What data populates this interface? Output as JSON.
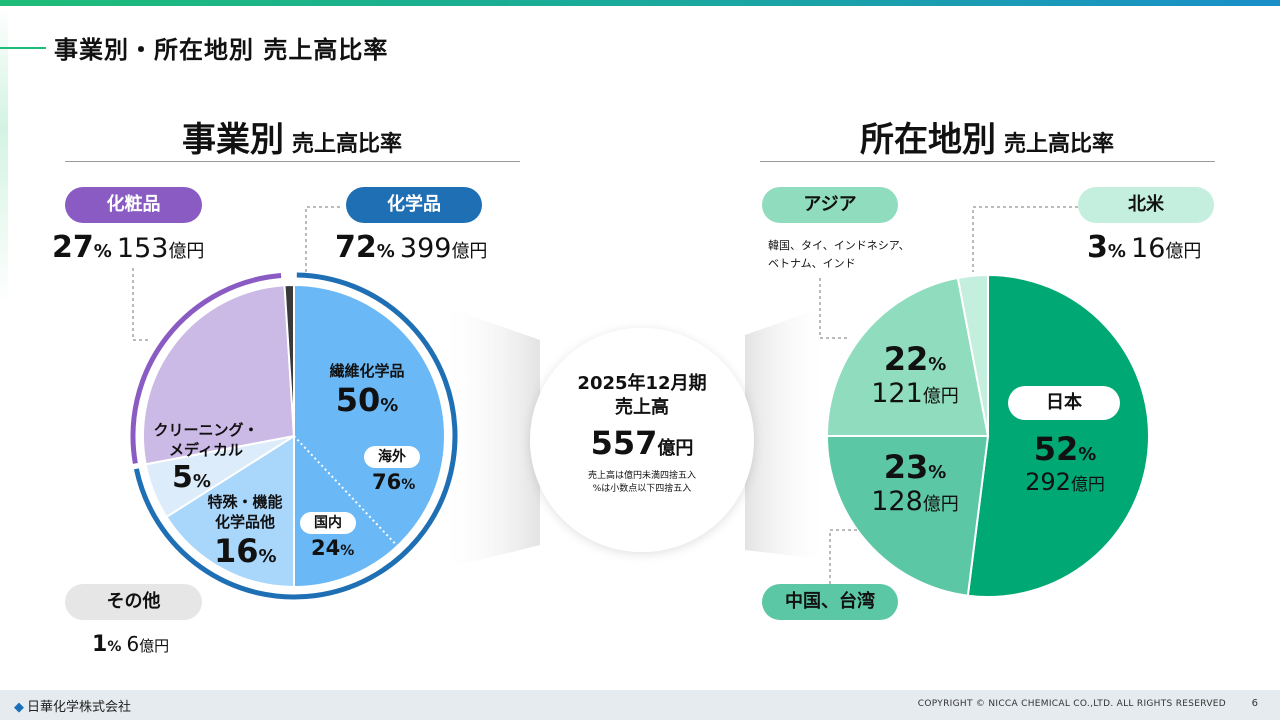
{
  "page": {
    "title": "事業別・所在地別 売上高比率",
    "company": "日華化学株式会社",
    "copyright": "COPYRIGHT © NICCA CHEMICAL CO.,LTD. ALL RIGHTS RESERVED",
    "page_number": "6"
  },
  "business": {
    "title_main": "事業別",
    "title_sub": "売上高比率",
    "cosmetics": {
      "label": "化粧品",
      "pct": "27",
      "amount": "153"
    },
    "chemicals": {
      "label": "化学品",
      "pct": "72",
      "amount": "399"
    },
    "others": {
      "label": "その他",
      "pct": "1",
      "amount": "6"
    },
    "textile": {
      "label": "繊維化学品",
      "pct": "50"
    },
    "overseas": {
      "label": "海外",
      "pct": "76"
    },
    "domestic": {
      "label": "国内",
      "pct": "24"
    },
    "cleaning": {
      "label1": "クリーニング・",
      "label2": "メディカル",
      "pct": "5"
    },
    "special": {
      "label1": "特殊・機能",
      "label2": "化学品他",
      "pct": "16"
    }
  },
  "center": {
    "line1": "2025年12月期",
    "line2": "売上高",
    "value": "557",
    "unit": "億円",
    "note1": "売上高は億円未満四捨五入",
    "note2": "%は小数点以下四捨五入"
  },
  "region": {
    "title_main": "所在地別",
    "title_sub": "売上高比率",
    "asia": {
      "label": "アジア",
      "desc1": "韓国、タイ、インドネシア、",
      "desc2": "ベトナム、インド",
      "pct": "22",
      "amount": "121"
    },
    "north_america": {
      "label": "北米",
      "pct": "3",
      "amount": "16"
    },
    "japan": {
      "label": "日本",
      "pct": "52",
      "amount": "292"
    },
    "china_taiwan": {
      "label": "中国、台湾",
      "pct": "23",
      "amount": "128"
    }
  },
  "units": {
    "percent": "%",
    "oku_yen": "億円"
  },
  "colors": {
    "chemicals": "#1f6fb5",
    "textile": "#6ab8f5",
    "special": "#a9d6fb",
    "cleaning": "#dcecfb",
    "cosmetics": "#cbb9e6",
    "cosmetics_pill": "#8a5cc3",
    "others": "#3a3a3a",
    "japan": "#00a874",
    "china_taiwan": "#5cc7a4",
    "asia": "#8fdcbf",
    "north_america": "#c4eedd"
  },
  "chart_data": [
    {
      "type": "pie",
      "title": "事業別 売上高比率",
      "categories": [
        "化学品",
        "化粧品",
        "その他"
      ],
      "values": [
        72,
        27,
        1
      ],
      "amounts_oku_yen": [
        399,
        153,
        6
      ],
      "sub_breakdown": {
        "parent": "化学品",
        "categories": [
          "繊維化学品",
          "特殊・機能化学品他",
          "クリーニング・メディカル"
        ],
        "values": [
          50,
          16,
          5
        ],
        "textile_split": {
          "categories": [
            "海外",
            "国内"
          ],
          "values": [
            76,
            24
          ]
        }
      }
    },
    {
      "type": "pie",
      "title": "所在地別 売上高比率",
      "categories": [
        "日本",
        "中国、台湾",
        "アジア",
        "北米"
      ],
      "values": [
        52,
        23,
        22,
        3
      ],
      "amounts_oku_yen": [
        292,
        128,
        121,
        16
      ]
    }
  ]
}
